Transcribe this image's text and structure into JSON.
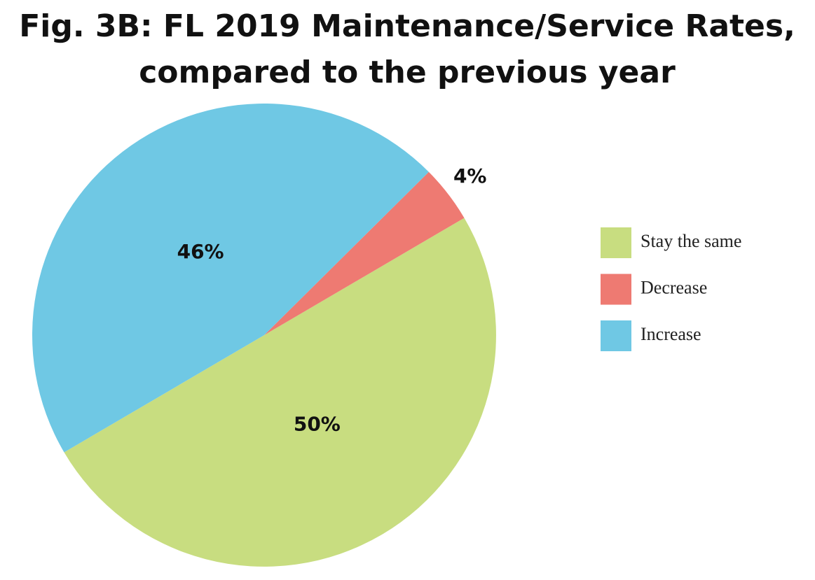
{
  "chart_data": {
    "type": "pie",
    "title": [
      "Fig. 3B: FL 2019 Maintenance/Service Rates,",
      "compared to the previous year"
    ],
    "categories": [
      "Stay the same",
      "Decrease",
      "Increase"
    ],
    "values": [
      50,
      4,
      46
    ],
    "value_labels": [
      "50%",
      "4%",
      "46%"
    ],
    "colors": [
      "#c8dd80",
      "#ee7a72",
      "#6fc8e4"
    ],
    "legend": "right"
  }
}
